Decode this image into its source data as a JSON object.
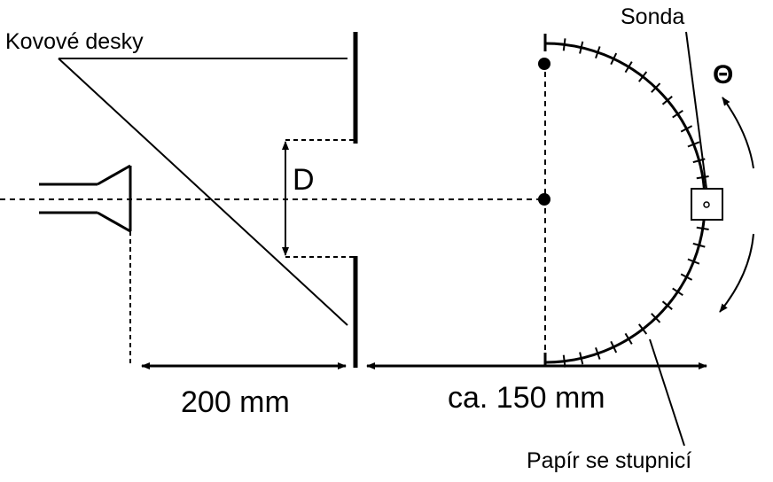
{
  "labels": {
    "plates": "Kovové desky",
    "probe": "Sonda",
    "gap": "D",
    "angle": "Θ",
    "distance_left": "200 mm",
    "distance_right": "ca. 150 mm",
    "paper": "Papír se stupnicí"
  },
  "scale": {
    "tick_count": 28
  }
}
